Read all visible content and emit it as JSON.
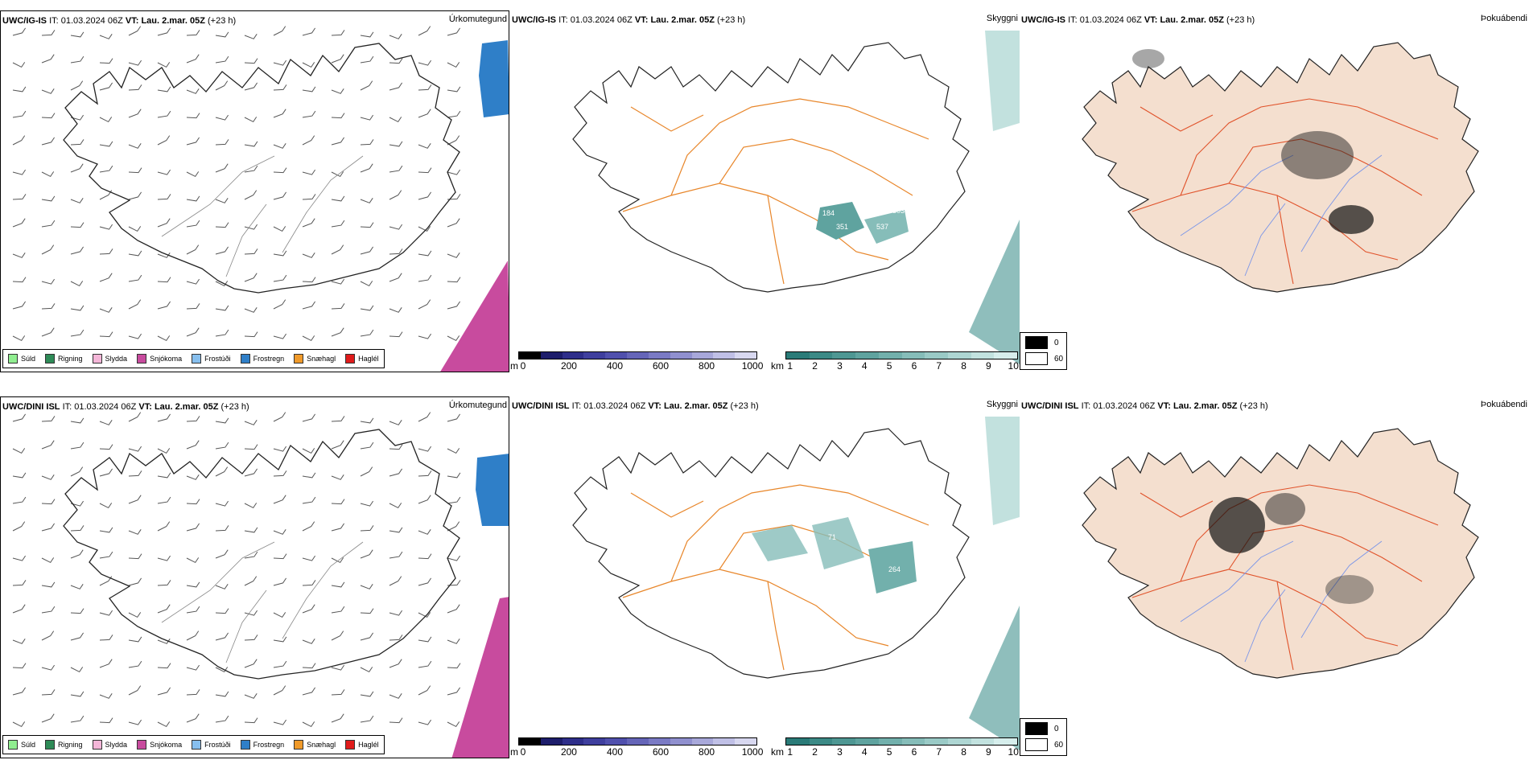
{
  "rows": [
    {
      "model": "UWC/IG-IS",
      "it_label": "IT:",
      "it_value": "01.03.2024 06Z",
      "vt_label": "VT:",
      "vt_value": "Lau. 2.mar. 05Z",
      "lead": "(+23 h)"
    },
    {
      "model": "UWC/DINI ISL",
      "it_label": "IT:",
      "it_value": "01.03.2024 06Z",
      "vt_label": "VT:",
      "vt_value": "Lau. 2.mar. 05Z",
      "lead": "(+23 h)"
    }
  ],
  "panel_titles": {
    "precip": "Úrkomutegund",
    "cloud": "Skyggni",
    "fog": "Þokuábendi"
  },
  "precip_legend": [
    {
      "label": "Súld",
      "color": "#90ee90"
    },
    {
      "label": "Rigning",
      "color": "#2e8b57"
    },
    {
      "label": "Slydda",
      "color": "#f4b6d8"
    },
    {
      "label": "Snjókoma",
      "color": "#c84b9e"
    },
    {
      "label": "Frostúði",
      "color": "#87bfee"
    },
    {
      "label": "Frostregn",
      "color": "#2f7fc8"
    },
    {
      "label": "Snæhagl",
      "color": "#f09a2a"
    },
    {
      "label": "Haglél",
      "color": "#e01b1b"
    }
  ],
  "cloud_colorbar": {
    "unit": "m",
    "ticks": [
      "0",
      "200",
      "400",
      "600",
      "800",
      "1000"
    ],
    "colors": [
      "#000000",
      "#1d1d6b",
      "#2e2e8a",
      "#3f3f9e",
      "#5050ad",
      "#6565b8",
      "#7a7ac4",
      "#9090cf",
      "#a8a8da",
      "#c0c0e6",
      "#d8d8f0"
    ]
  },
  "vis_colorbar": {
    "unit": "km",
    "ticks": [
      "1",
      "2",
      "3",
      "4",
      "5",
      "6",
      "7",
      "8",
      "9",
      "10"
    ],
    "colors": [
      "#2a7b78",
      "#3c8a86",
      "#4e9793",
      "#5fa39f",
      "#72b0ac",
      "#86bdb9",
      "#9acac6",
      "#aed6d3",
      "#c2e2df",
      "#d6eeec"
    ]
  },
  "fog_legend": {
    "top": "0",
    "bottom": "60",
    "top_color": "#000000",
    "bottom_color": "#ffffff"
  },
  "cloud_labels_top": [
    "184",
    "351",
    "537",
    "303"
  ],
  "cloud_labels_bottom": [
    "71",
    "264"
  ]
}
